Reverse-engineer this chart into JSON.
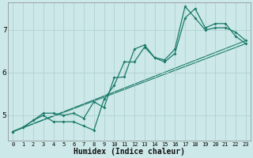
{
  "title": "",
  "xlabel": "Humidex (Indice chaleur)",
  "bg_color": "#cce8e8",
  "line_color": "#1a7a6a",
  "xlim": [
    -0.5,
    23.5
  ],
  "ylim": [
    4.4,
    7.65
  ],
  "xticks": [
    0,
    1,
    2,
    3,
    4,
    5,
    6,
    7,
    8,
    9,
    10,
    11,
    12,
    13,
    14,
    15,
    16,
    17,
    18,
    19,
    20,
    21,
    22,
    23
  ],
  "yticks": [
    5,
    6,
    7
  ],
  "grid_color": "#aacece",
  "series1_x": [
    0,
    1,
    2,
    3,
    4,
    5,
    6,
    7,
    8,
    9,
    10,
    11,
    12,
    13,
    14,
    15,
    16,
    17,
    18,
    19,
    20,
    21,
    22,
    23
  ],
  "series1_y": [
    4.62,
    4.72,
    4.88,
    5.05,
    5.05,
    5.0,
    5.05,
    4.93,
    5.32,
    5.18,
    5.88,
    5.9,
    6.55,
    6.65,
    6.35,
    6.3,
    6.55,
    7.55,
    7.28,
    7.0,
    7.05,
    7.05,
    6.95,
    6.75
  ],
  "series2_x": [
    0,
    1,
    2,
    3,
    4,
    5,
    6,
    7,
    8,
    9,
    10,
    11,
    12,
    13,
    14,
    15,
    16,
    17,
    18,
    19,
    20,
    21,
    22,
    23
  ],
  "series2_y": [
    4.62,
    4.72,
    4.88,
    5.0,
    4.85,
    4.85,
    4.85,
    4.75,
    4.65,
    5.38,
    5.7,
    6.25,
    6.25,
    6.6,
    6.35,
    6.25,
    6.45,
    7.28,
    7.5,
    7.05,
    7.15,
    7.15,
    6.85,
    6.68
  ],
  "series3_x": [
    0,
    23
  ],
  "series3_y": [
    4.62,
    6.75
  ],
  "series4_x": [
    0,
    23
  ],
  "series4_y": [
    4.62,
    6.68
  ],
  "xtick_fontsize": 5.0,
  "ytick_fontsize": 6.5,
  "xlabel_fontsize": 7.0
}
